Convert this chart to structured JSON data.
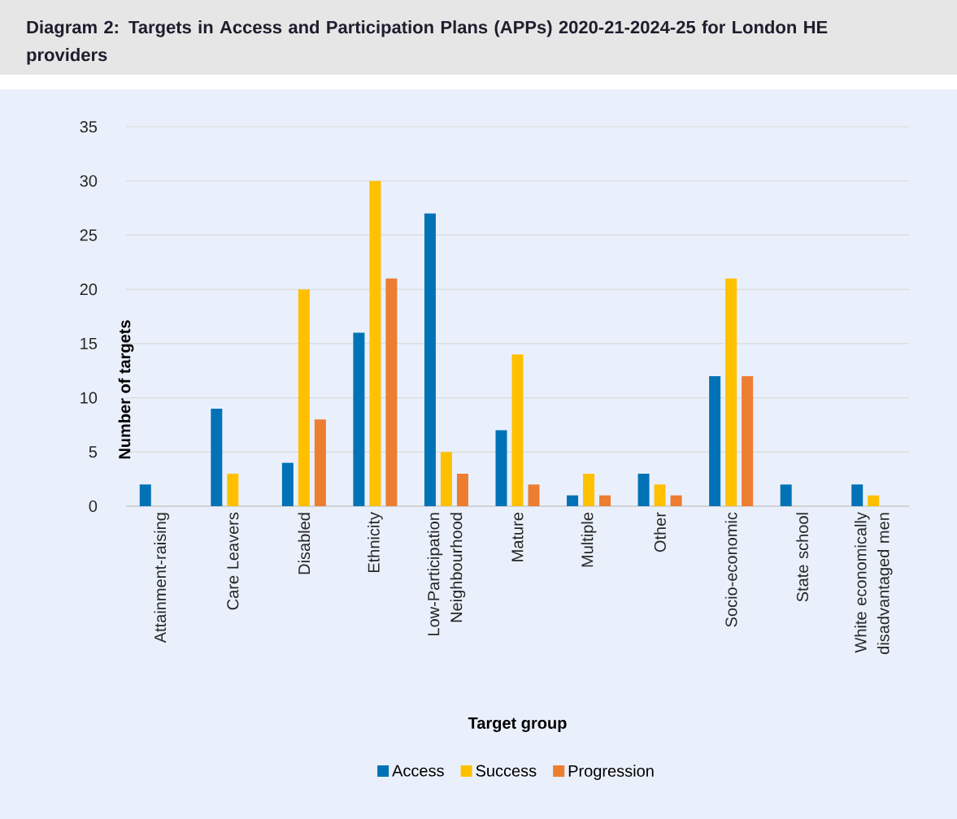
{
  "chart_data": {
    "type": "bar",
    "title": "Diagram 2: Targets in Access and Participation Plans (APPs) 2020-21-2024-25 for London HE providers",
    "xlabel": "Target group",
    "ylabel": "Number of targets",
    "categories": [
      "Attainment-raising",
      "Care Leavers",
      "Disabled",
      "Ethnicity",
      "Low-Participation Neighbourhood",
      "Mature",
      "Multiple",
      "Other",
      "Socio-economic",
      "State school",
      "White economically disadvantaged men"
    ],
    "series": [
      {
        "name": "Access",
        "color": "#0072b5",
        "values": [
          2,
          9,
          4,
          16,
          27,
          7,
          1,
          3,
          12,
          2,
          2
        ]
      },
      {
        "name": "Success",
        "color": "#ffc000",
        "values": [
          0,
          3,
          20,
          30,
          5,
          14,
          3,
          2,
          21,
          0,
          1
        ]
      },
      {
        "name": "Progression",
        "color": "#ed7d31",
        "values": [
          0,
          0,
          8,
          21,
          3,
          2,
          1,
          1,
          12,
          0,
          0
        ]
      }
    ],
    "ylim": [
      0,
      35
    ],
    "yticks": [
      0,
      5,
      10,
      15,
      20,
      25,
      30,
      35
    ],
    "grid": "y",
    "legend": "bottom"
  }
}
